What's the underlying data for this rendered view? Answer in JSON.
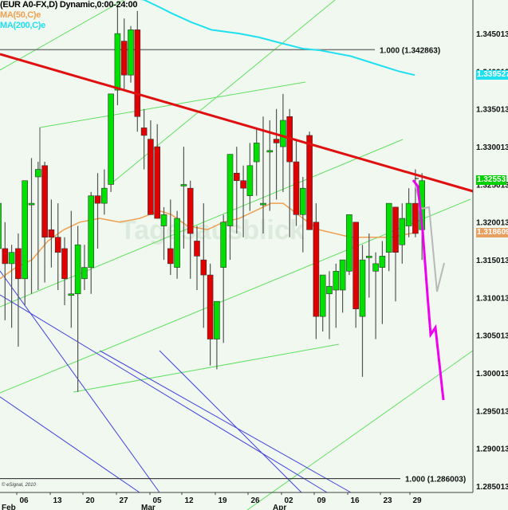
{
  "legend": {
    "symbol": "(EUR A0-FX,D) Dynamic,0:00-24:00",
    "ma50": "MA(50,C)e",
    "ma200": "MA(200,C)e"
  },
  "colors": {
    "background": "#f0f8f0",
    "up": "#00e000",
    "down": "#e00000",
    "ma50": "#f0a050",
    "ma200": "#20e0f0",
    "resistance": "#e01010",
    "channel": "#60e060",
    "fan": "#4040e0",
    "forecast_main": "#f000f0",
    "forecast_alt": "#b8b8b8"
  },
  "fib_levels": [
    {
      "label": "1.000 (1.342863)",
      "price": 1.342863
    },
    {
      "label": "1.000 (1.286003)",
      "price": 1.286003
    }
  ],
  "price_tags": [
    {
      "label": "1.339527",
      "price": 1.339527,
      "color": "#20e0f0",
      "name": "ma200-price-tag"
    },
    {
      "label": "1.32553",
      "price": 1.32553,
      "color": "#00d000",
      "name": "last-price-tag"
    },
    {
      "label": "1.318609",
      "price": 1.318609,
      "color": "#e8a060",
      "name": "ma50-price-tag"
    }
  ],
  "watermark": "Tagesausblick",
  "copyright": "© eSignal, 2010",
  "chart_data": {
    "type": "candlestick",
    "title": "(EUR A0-FX,D) Dynamic,0:00-24:00",
    "xlabel": "",
    "ylabel": "",
    "ylim": [
      1.283,
      1.3495
    ],
    "y_ticks": [
      "1.345013",
      "1.340013",
      "1.335013",
      "1.330013",
      "1.325013",
      "1.320013",
      "1.315013",
      "1.310013",
      "1.305013",
      "1.300013",
      "1.295013",
      "1.290013",
      "1.285013"
    ],
    "x_ticks": [
      {
        "label": "06",
        "month": "Feb"
      },
      {
        "label": "13"
      },
      {
        "label": "20"
      },
      {
        "label": "27"
      },
      {
        "label": "05",
        "month": "Mar"
      },
      {
        "label": "12"
      },
      {
        "label": "19"
      },
      {
        "label": "26"
      },
      {
        "label": "02",
        "month": "Apr"
      },
      {
        "label": "09"
      },
      {
        "label": "16"
      },
      {
        "label": "23"
      },
      {
        "label": "29"
      }
    ],
    "legend": [
      "MA(50,C)e",
      "MA(200,C)e"
    ],
    "grid": false,
    "candles": [
      {
        "o": 1.3165,
        "h": 1.3215,
        "l": 1.303,
        "c": 1.3225
      },
      {
        "o": 1.3165,
        "h": 1.32,
        "l": 1.307,
        "c": 1.3145
      },
      {
        "o": 1.3145,
        "h": 1.317,
        "l": 1.306,
        "c": 1.316
      },
      {
        "o": 1.3165,
        "h": 1.3185,
        "l": 1.3035,
        "c": 1.3125
      },
      {
        "o": 1.3125,
        "h": 1.325,
        "l": 1.309,
        "c": 1.3255
      },
      {
        "o": 1.3225,
        "h": 1.3285,
        "l": 1.3105,
        "c": 1.3225
      },
      {
        "o": 1.326,
        "h": 1.328,
        "l": 1.311,
        "c": 1.327
      },
      {
        "o": 1.3275,
        "h": 1.328,
        "l": 1.312,
        "c": 1.318
      },
      {
        "o": 1.319,
        "h": 1.323,
        "l": 1.314,
        "c": 1.318
      },
      {
        "o": 1.318,
        "h": 1.3225,
        "l": 1.311,
        "c": 1.316
      },
      {
        "o": 1.3165,
        "h": 1.318,
        "l": 1.309,
        "c": 1.3125
      },
      {
        "o": 1.3105,
        "h": 1.3215,
        "l": 1.306,
        "c": 1.3105
      },
      {
        "o": 1.3105,
        "h": 1.3195,
        "l": 1.2975,
        "c": 1.317
      },
      {
        "o": 1.3125,
        "h": 1.317,
        "l": 1.311,
        "c": 1.314
      },
      {
        "o": 1.314,
        "h": 1.324,
        "l": 1.3105,
        "c": 1.3235
      },
      {
        "o": 1.3235,
        "h": 1.3265,
        "l": 1.3165,
        "c": 1.3225
      },
      {
        "o": 1.3225,
        "h": 1.327,
        "l": 1.321,
        "c": 1.3245
      },
      {
        "o": 1.325,
        "h": 1.3335,
        "l": 1.324,
        "c": 1.337
      },
      {
        "o": 1.3375,
        "h": 1.3485,
        "l": 1.3355,
        "c": 1.345
      },
      {
        "o": 1.344,
        "h": 1.347,
        "l": 1.3375,
        "c": 1.3395
      },
      {
        "o": 1.3395,
        "h": 1.346,
        "l": 1.3385,
        "c": 1.3455
      },
      {
        "o": 1.3455,
        "h": 1.348,
        "l": 1.332,
        "c": 1.334
      },
      {
        "o": 1.3325,
        "h": 1.335,
        "l": 1.327,
        "c": 1.3315
      },
      {
        "o": 1.331,
        "h": 1.3335,
        "l": 1.3235,
        "c": 1.321
      },
      {
        "o": 1.33,
        "h": 1.333,
        "l": 1.3225,
        "c": 1.3205
      },
      {
        "o": 1.3195,
        "h": 1.322,
        "l": 1.315,
        "c": 1.321
      },
      {
        "o": 1.3165,
        "h": 1.323,
        "l": 1.313,
        "c": 1.3145
      },
      {
        "o": 1.314,
        "h": 1.3215,
        "l": 1.3125,
        "c": 1.3205
      },
      {
        "o": 1.325,
        "h": 1.33,
        "l": 1.3165,
        "c": 1.325
      },
      {
        "o": 1.3245,
        "h": 1.3255,
        "l": 1.3125,
        "c": 1.3185
      },
      {
        "o": 1.3175,
        "h": 1.3195,
        "l": 1.311,
        "c": 1.3155
      },
      {
        "o": 1.315,
        "h": 1.3225,
        "l": 1.306,
        "c": 1.313
      },
      {
        "o": 1.313,
        "h": 1.3145,
        "l": 1.301,
        "c": 1.3045
      },
      {
        "o": 1.3045,
        "h": 1.3095,
        "l": 1.3005,
        "c": 1.3095
      },
      {
        "o": 1.314,
        "h": 1.321,
        "l": 1.304,
        "c": 1.32
      },
      {
        "o": 1.3195,
        "h": 1.322,
        "l": 1.315,
        "c": 1.329
      },
      {
        "o": 1.3265,
        "h": 1.33,
        "l": 1.3185,
        "c": 1.3255
      },
      {
        "o": 1.3255,
        "h": 1.3275,
        "l": 1.318,
        "c": 1.3245
      },
      {
        "o": 1.3235,
        "h": 1.3305,
        "l": 1.3215,
        "c": 1.3275
      },
      {
        "o": 1.328,
        "h": 1.3325,
        "l": 1.3235,
        "c": 1.3305
      },
      {
        "o": 1.3225,
        "h": 1.334,
        "l": 1.3185,
        "c": 1.3225
      },
      {
        "o": 1.3295,
        "h": 1.3335,
        "l": 1.3215,
        "c": 1.3295
      },
      {
        "o": 1.331,
        "h": 1.335,
        "l": 1.323,
        "c": 1.3305
      },
      {
        "o": 1.33,
        "h": 1.337,
        "l": 1.324,
        "c": 1.3335
      },
      {
        "o": 1.334,
        "h": 1.335,
        "l": 1.318,
        "c": 1.328
      },
      {
        "o": 1.328,
        "h": 1.331,
        "l": 1.3195,
        "c": 1.321
      },
      {
        "o": 1.321,
        "h": 1.326,
        "l": 1.316,
        "c": 1.3245
      },
      {
        "o": 1.3315,
        "h": 1.332,
        "l": 1.3215,
        "c": 1.319
      },
      {
        "o": 1.32,
        "h": 1.3225,
        "l": 1.3045,
        "c": 1.3075
      },
      {
        "o": 1.3075,
        "h": 1.3125,
        "l": 1.3055,
        "c": 1.313
      },
      {
        "o": 1.3105,
        "h": 1.3135,
        "l": 1.3045,
        "c": 1.3115
      },
      {
        "o": 1.311,
        "h": 1.3145,
        "l": 1.306,
        "c": 1.3135
      },
      {
        "o": 1.311,
        "h": 1.315,
        "l": 1.308,
        "c": 1.315
      },
      {
        "o": 1.3135,
        "h": 1.3205,
        "l": 1.313,
        "c": 1.321
      },
      {
        "o": 1.32,
        "h": 1.319,
        "l": 1.306,
        "c": 1.3085
      },
      {
        "o": 1.3075,
        "h": 1.317,
        "l": 1.2995,
        "c": 1.315
      },
      {
        "o": 1.3155,
        "h": 1.3185,
        "l": 1.31,
        "c": 1.3155
      },
      {
        "o": 1.3135,
        "h": 1.316,
        "l": 1.3045,
        "c": 1.3145
      },
      {
        "o": 1.314,
        "h": 1.3175,
        "l": 1.3065,
        "c": 1.3155
      },
      {
        "o": 1.316,
        "h": 1.3225,
        "l": 1.3135,
        "c": 1.3225
      },
      {
        "o": 1.322,
        "h": 1.3215,
        "l": 1.3095,
        "c": 1.316
      },
      {
        "o": 1.317,
        "h": 1.3225,
        "l": 1.3145,
        "c": 1.3205
      },
      {
        "o": 1.3195,
        "h": 1.3245,
        "l": 1.318,
        "c": 1.3225
      },
      {
        "o": 1.3225,
        "h": 1.327,
        "l": 1.318,
        "c": 1.3185
      },
      {
        "o": 1.319,
        "h": 1.3265,
        "l": 1.315,
        "c": 1.3255
      }
    ],
    "ma50": [
      [
        0,
        1.3125
      ],
      [
        20,
        1.314
      ],
      [
        40,
        1.315
      ],
      [
        60,
        1.3175
      ],
      [
        80,
        1.319
      ],
      [
        100,
        1.32
      ],
      [
        125,
        1.3205
      ],
      [
        150,
        1.32
      ],
      [
        175,
        1.3205
      ],
      [
        200,
        1.3215
      ],
      [
        215,
        1.321
      ],
      [
        235,
        1.3195
      ],
      [
        260,
        1.319
      ],
      [
        280,
        1.32
      ],
      [
        300,
        1.3205
      ],
      [
        320,
        1.3215
      ],
      [
        340,
        1.3225
      ],
      [
        355,
        1.3225
      ],
      [
        380,
        1.3205
      ],
      [
        400,
        1.319
      ],
      [
        420,
        1.3185
      ],
      [
        440,
        1.318
      ],
      [
        465,
        1.318
      ],
      [
        490,
        1.318
      ],
      [
        520,
        1.3186
      ]
    ],
    "ma200": [
      [
        150,
        1.3497
      ],
      [
        165,
        1.3497
      ],
      [
        180,
        1.3495
      ],
      [
        200,
        1.3485
      ],
      [
        215,
        1.3477
      ],
      [
        240,
        1.3465
      ],
      [
        265,
        1.3455
      ],
      [
        300,
        1.345
      ],
      [
        325,
        1.3445
      ],
      [
        350,
        1.3438
      ],
      [
        380,
        1.343
      ],
      [
        400,
        1.3428
      ],
      [
        440,
        1.342
      ],
      [
        470,
        1.341
      ],
      [
        500,
        1.34
      ],
      [
        520,
        1.3395
      ]
    ]
  }
}
